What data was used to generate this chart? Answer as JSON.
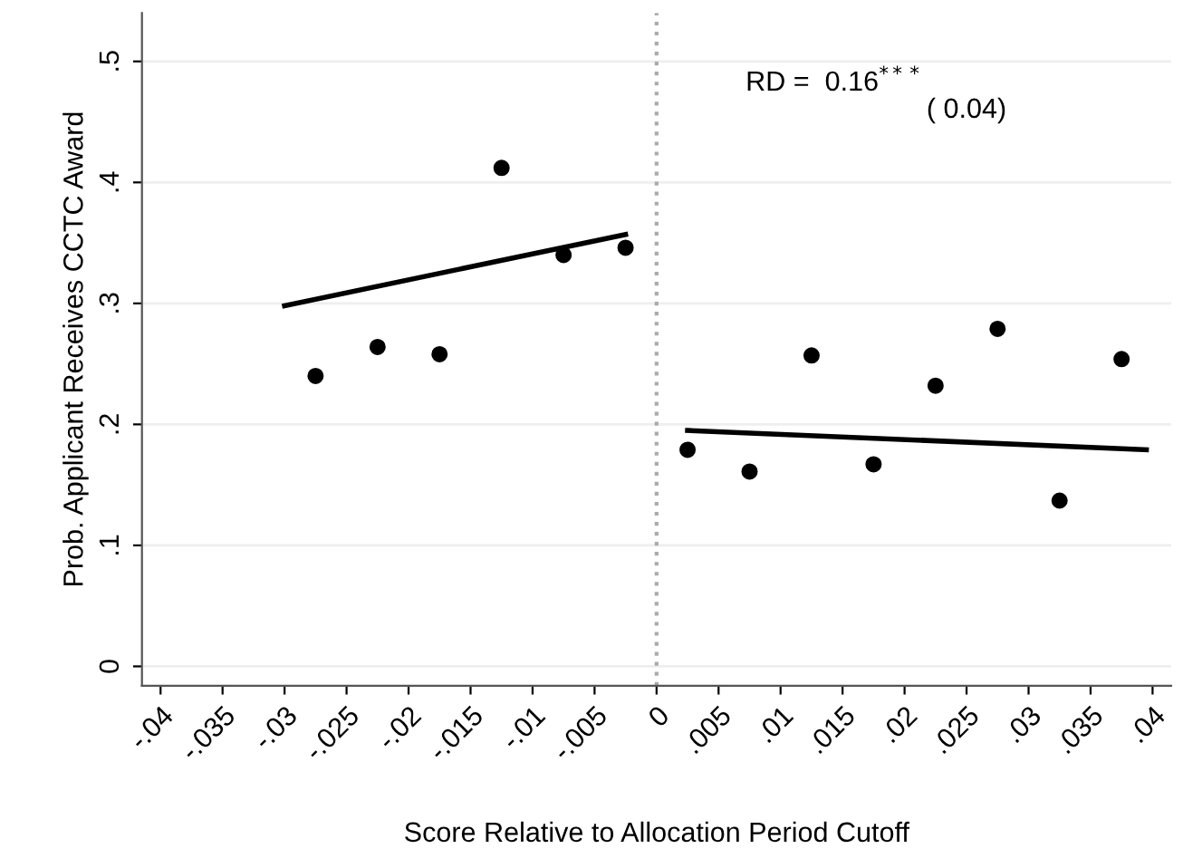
{
  "chart_data": {
    "type": "scatter",
    "xlabel": "Score Relative to Allocation Period Cutoff",
    "ylabel": "Prob. Applicant Receives CCTC Award",
    "annotations": [
      "RD =  0.16$^{***}$",
      "( 0.04)"
    ],
    "series": [
      {
        "color": "#000000",
        "marker": "circle",
        "x": [
          -0.0275,
          -0.0225,
          -0.0175,
          -0.0125,
          -0.0075,
          -0.0025
        ],
        "values": [
          0.24,
          0.264,
          0.258,
          0.412,
          0.34,
          0.346
        ]
      },
      {
        "color": "#000000",
        "marker": "circle",
        "x": [
          0.0025,
          0.0075,
          0.0125,
          0.0175,
          0.0225,
          0.0275,
          0.0325,
          0.0375
        ],
        "values": [
          0.179,
          0.161,
          0.257,
          0.167,
          0.232,
          0.279,
          0.137,
          0.254
        ]
      },
      {
        "type": "line",
        "color": "#000000",
        "x": [
          -0.03,
          -0.0025
        ],
        "values": [
          0.298,
          0.357
        ]
      },
      {
        "type": "line",
        "color": "#000000",
        "x": [
          0.0025,
          0.0395
        ],
        "values": [
          0.195,
          0.179
        ]
      }
    ],
    "xlim": [
      -0.0415,
      0.0415
    ],
    "xticks": [
      {
        "value": -0.04,
        "label": "-.04"
      },
      {
        "value": -0.035,
        "label": "-.035"
      },
      {
        "value": -0.03,
        "label": "-.03"
      },
      {
        "value": -0.025,
        "label": "-.025"
      },
      {
        "value": -0.02,
        "label": "-.02"
      },
      {
        "value": -0.015,
        "label": "-.015"
      },
      {
        "value": -0.01,
        "label": "-.01"
      },
      {
        "value": -0.005,
        "label": "-.005"
      },
      0,
      {
        "value": 0.005,
        "label": ".005"
      },
      {
        "value": 0.01,
        "label": ".01"
      },
      {
        "value": 0.015,
        "label": ".015"
      },
      {
        "value": 0.02,
        "label": ".02"
      },
      {
        "value": 0.025,
        "label": ".025"
      },
      {
        "value": 0.03,
        "label": ".03"
      },
      {
        "value": 0.035,
        "label": ".035"
      },
      {
        "value": 0.04,
        "label": ".04"
      }
    ],
    "ylim": [
      -0.016,
      0.54
    ],
    "yticks": [
      0,
      {
        "value": 0.1,
        "label": ".1"
      },
      {
        "value": 0.2,
        "label": ".2"
      },
      {
        "value": 0.3,
        "label": ".3"
      },
      {
        "value": 0.4,
        "label": ".4"
      },
      {
        "value": 0.5,
        "label": ".5"
      }
    ],
    "grid": "y",
    "ref_lines": [
      {
        "axis": "x",
        "value": 0,
        "color": "#aaaaaa",
        "line_style": "dotted"
      }
    ]
  }
}
